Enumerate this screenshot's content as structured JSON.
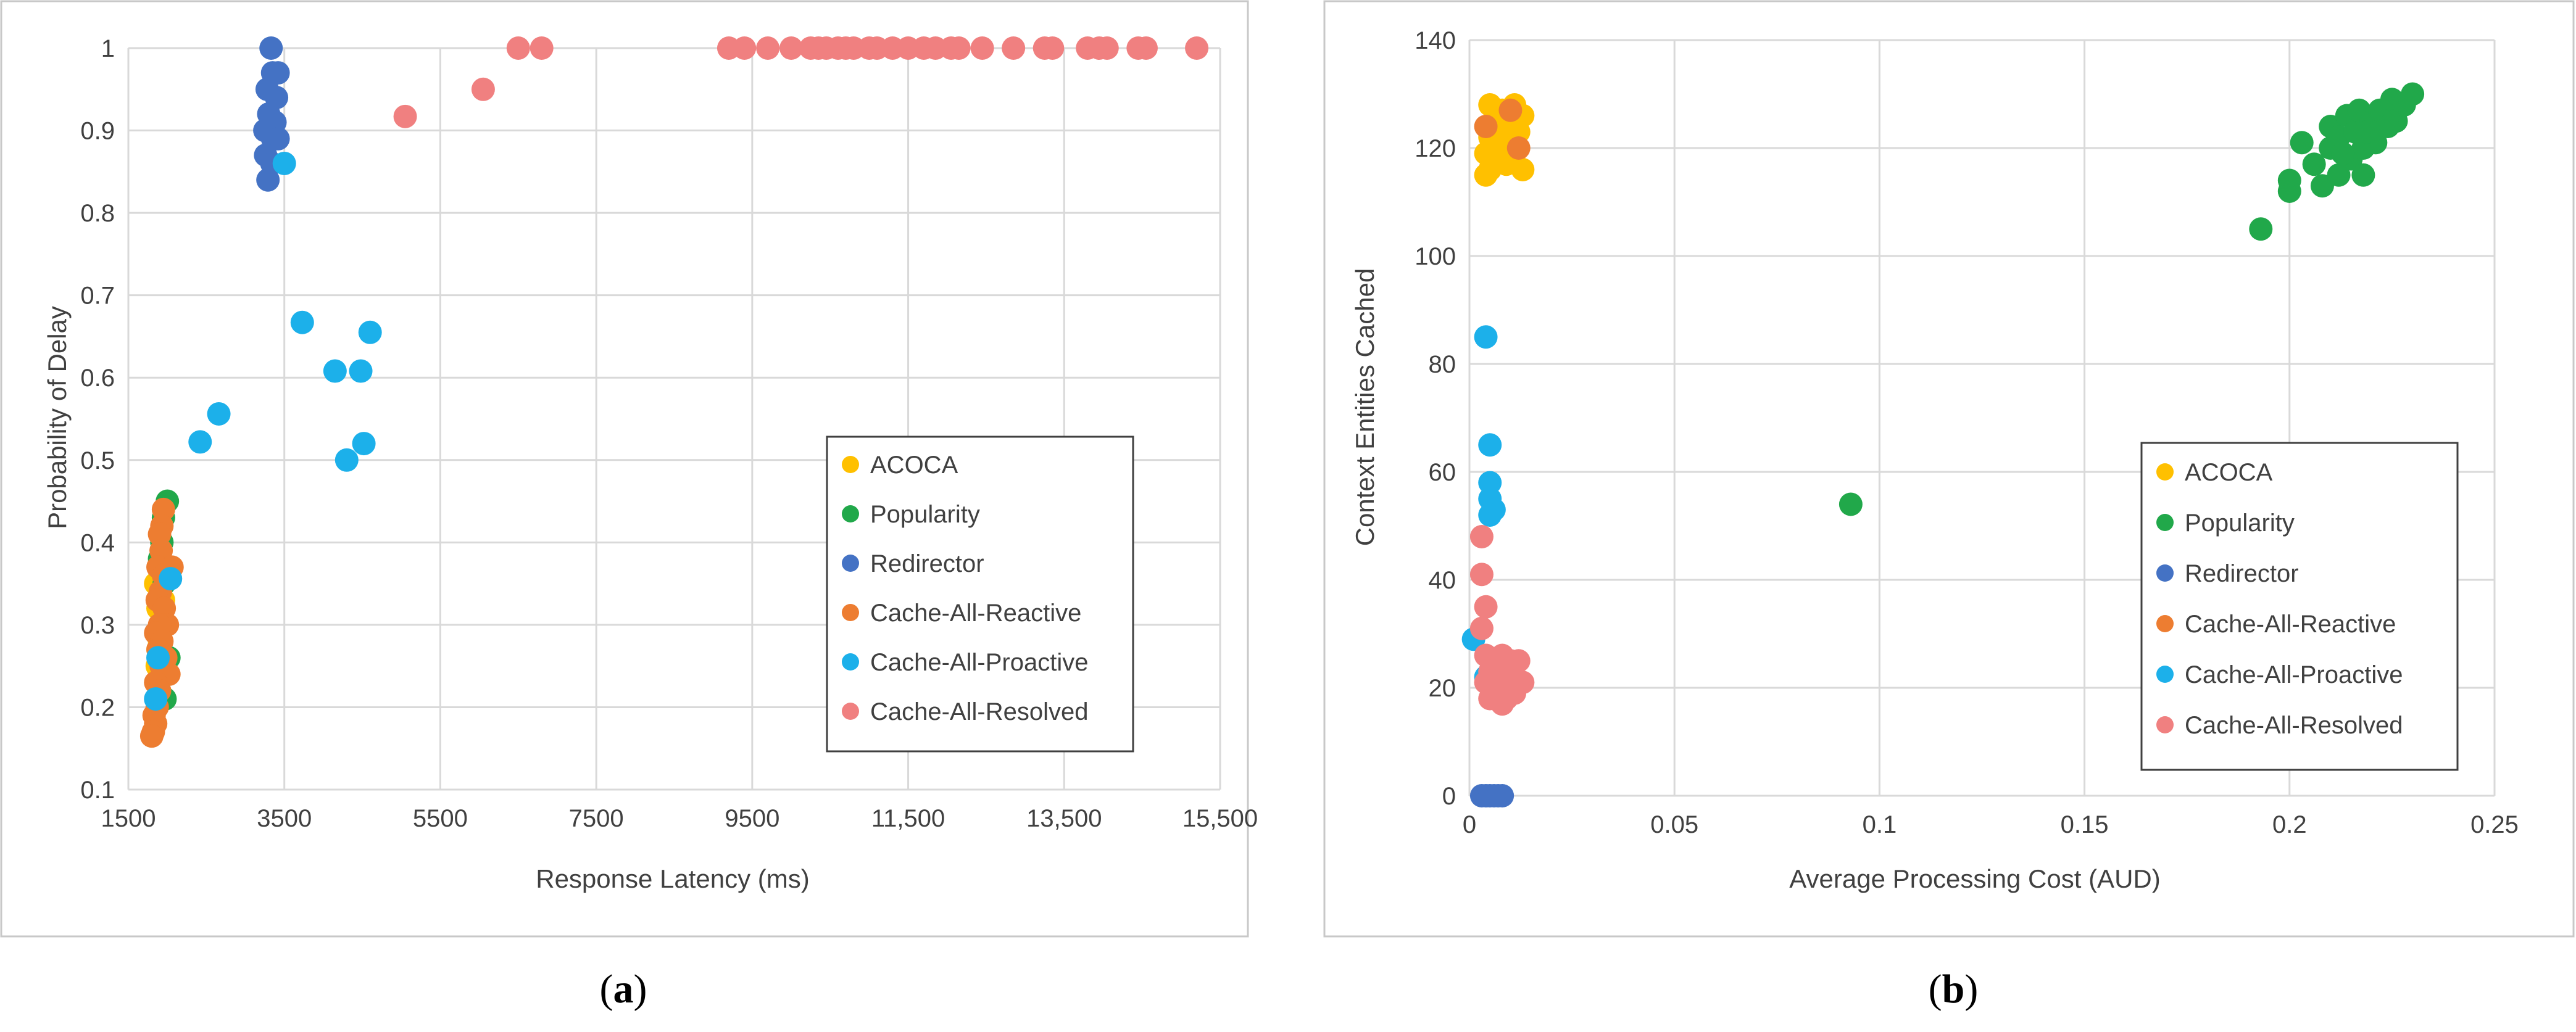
{
  "series_colors": {
    "ACOCA": "#FFC000",
    "Popularity": "#21A84A",
    "Redirector": "#4472C4",
    "Cache-All-Reactive": "#ED7D31",
    "Cache-All-Proactive": "#1CB0EA",
    "Cache-All-Resolved": "#F08080"
  },
  "chart_data": [
    {
      "type": "scatter",
      "caption": "(a)",
      "caption_letter": "a",
      "title": "",
      "xlabel": "Response Latency (ms)",
      "ylabel": "Probability of Delay",
      "xlim": [
        1500,
        15500
      ],
      "ylim": [
        0.1,
        1.0
      ],
      "x_ticks": [
        1500,
        3500,
        5500,
        7500,
        9500,
        11500,
        13500,
        15500
      ],
      "x_tick_labels": [
        "1500",
        "3500",
        "5500",
        "7500",
        "9500",
        "11,500",
        "13,500",
        "15,500"
      ],
      "y_ticks": [
        0.1,
        0.2,
        0.3,
        0.4,
        0.5,
        0.6,
        0.7,
        0.8,
        0.9,
        1.0
      ],
      "y_tick_labels": [
        "0.1",
        "0.2",
        "0.3",
        "0.4",
        "0.5",
        "0.6",
        "0.7",
        "0.8",
        "0.9",
        "1"
      ],
      "grid": true,
      "legend_position": "bottom-right",
      "series": [
        {
          "name": "ACOCA",
          "points": [
            [
              1850,
              0.35
            ],
            [
              1880,
              0.32
            ],
            [
              1900,
              0.28
            ],
            [
              1920,
              0.3
            ],
            [
              1870,
              0.25
            ],
            [
              1950,
              0.33
            ],
            [
              1900,
              0.22
            ],
            [
              1880,
              0.27
            ]
          ]
        },
        {
          "name": "Popularity",
          "points": [
            [
              2000,
              0.45
            ],
            [
              1950,
              0.43
            ],
            [
              1930,
              0.4
            ],
            [
              1900,
              0.38
            ],
            [
              2020,
              0.26
            ],
            [
              1970,
              0.21
            ],
            [
              1930,
              0.3
            ],
            [
              1960,
              0.35
            ]
          ]
        },
        {
          "name": "Redirector",
          "points": [
            [
              3330,
              1.0
            ],
            [
              3350,
              0.97
            ],
            [
              3420,
              0.97
            ],
            [
              3280,
              0.95
            ],
            [
              3400,
              0.94
            ],
            [
              3300,
              0.92
            ],
            [
              3380,
              0.91
            ],
            [
              3250,
              0.9
            ],
            [
              3350,
              0.89
            ],
            [
              3420,
              0.89
            ],
            [
              3260,
              0.87
            ],
            [
              3340,
              0.86
            ],
            [
              3290,
              0.84
            ]
          ]
        },
        {
          "name": "Cache-All-Reactive",
          "points": [
            [
              1950,
              0.44
            ],
            [
              1930,
              0.42
            ],
            [
              1900,
              0.41
            ],
            [
              1920,
              0.39
            ],
            [
              1880,
              0.37
            ],
            [
              2060,
              0.37
            ],
            [
              1950,
              0.36
            ],
            [
              1910,
              0.34
            ],
            [
              1870,
              0.33
            ],
            [
              1960,
              0.32
            ],
            [
              2000,
              0.3
            ],
            [
              1900,
              0.3
            ],
            [
              1850,
              0.29
            ],
            [
              1930,
              0.28
            ],
            [
              1880,
              0.27
            ],
            [
              1980,
              0.26
            ],
            [
              1920,
              0.25
            ],
            [
              2020,
              0.24
            ],
            [
              1850,
              0.23
            ],
            [
              1900,
              0.22
            ],
            [
              1870,
              0.2
            ],
            [
              1830,
              0.19
            ],
            [
              1850,
              0.18
            ],
            [
              1820,
              0.17
            ],
            [
              1800,
              0.165
            ]
          ]
        },
        {
          "name": "Cache-All-Proactive",
          "points": [
            [
              3500,
              0.86
            ],
            [
              3730,
              0.667
            ],
            [
              4150,
              0.608
            ],
            [
              4480,
              0.608
            ],
            [
              4600,
              0.655
            ],
            [
              2660,
              0.556
            ],
            [
              2420,
              0.522
            ],
            [
              4520,
              0.52
            ],
            [
              4300,
              0.5
            ],
            [
              2040,
              0.356
            ],
            [
              1880,
              0.26
            ],
            [
              1850,
              0.21
            ]
          ]
        },
        {
          "name": "Cache-All-Resolved",
          "points": [
            [
              6500,
              1.0
            ],
            [
              6800,
              1.0
            ],
            [
              9200,
              1.0
            ],
            [
              9400,
              1.0
            ],
            [
              9700,
              1.0
            ],
            [
              10000,
              1.0
            ],
            [
              10250,
              1.0
            ],
            [
              10350,
              1.0
            ],
            [
              10450,
              1.0
            ],
            [
              10600,
              1.0
            ],
            [
              10700,
              1.0
            ],
            [
              10800,
              1.0
            ],
            [
              11000,
              1.0
            ],
            [
              11100,
              1.0
            ],
            [
              11300,
              1.0
            ],
            [
              11500,
              1.0
            ],
            [
              11700,
              1.0
            ],
            [
              11850,
              1.0
            ],
            [
              12050,
              1.0
            ],
            [
              12150,
              1.0
            ],
            [
              12450,
              1.0
            ],
            [
              12850,
              1.0
            ],
            [
              13250,
              1.0
            ],
            [
              13350,
              1.0
            ],
            [
              13800,
              1.0
            ],
            [
              13950,
              1.0
            ],
            [
              14050,
              1.0
            ],
            [
              14450,
              1.0
            ],
            [
              14550,
              1.0
            ],
            [
              15200,
              1.0
            ],
            [
              6050,
              0.95
            ],
            [
              5050,
              0.917
            ]
          ]
        }
      ]
    },
    {
      "type": "scatter",
      "caption": "(b)",
      "caption_letter": "b",
      "title": "",
      "xlabel": "Average Processing Cost (AUD)",
      "ylabel": "Context Entities Cached",
      "xlim": [
        0,
        0.25
      ],
      "ylim": [
        0,
        140
      ],
      "x_ticks": [
        0,
        0.05,
        0.1,
        0.15,
        0.2,
        0.25
      ],
      "x_tick_labels": [
        "0",
        "0.05",
        "0.1",
        "0.15",
        "0.2",
        "0.25"
      ],
      "y_ticks": [
        0,
        20,
        40,
        60,
        80,
        100,
        120,
        140
      ],
      "y_tick_labels": [
        "0",
        "20",
        "40",
        "60",
        "80",
        "100",
        "120",
        "140"
      ],
      "grid": true,
      "legend_position": "middle-right",
      "series": [
        {
          "name": "ACOCA",
          "points": [
            [
              0.005,
              128
            ],
            [
              0.008,
              127
            ],
            [
              0.011,
              128
            ],
            [
              0.006,
              125
            ],
            [
              0.01,
              124
            ],
            [
              0.013,
              126
            ],
            [
              0.005,
              122
            ],
            [
              0.009,
              121
            ],
            [
              0.012,
              123
            ],
            [
              0.004,
              119
            ],
            [
              0.007,
              118
            ],
            [
              0.011,
              119
            ],
            [
              0.005,
              116
            ],
            [
              0.009,
              117
            ],
            [
              0.013,
              116
            ],
            [
              0.004,
              115
            ],
            [
              0.008,
              126
            ],
            [
              0.01,
              122
            ],
            [
              0.006,
              120
            ]
          ]
        },
        {
          "name": "Popularity",
          "points": [
            [
              0.193,
              105
            ],
            [
              0.093,
              54
            ],
            [
              0.2,
              112
            ],
            [
              0.2,
              114
            ],
            [
              0.203,
              121
            ],
            [
              0.206,
              117
            ],
            [
              0.208,
              113
            ],
            [
              0.21,
              120
            ],
            [
              0.21,
              124
            ],
            [
              0.212,
              115
            ],
            [
              0.212,
              122
            ],
            [
              0.214,
              126
            ],
            [
              0.215,
              118
            ],
            [
              0.216,
              123
            ],
            [
              0.217,
              127
            ],
            [
              0.218,
              120
            ],
            [
              0.218,
              115
            ],
            [
              0.22,
              125
            ],
            [
              0.221,
              121
            ],
            [
              0.222,
              127
            ],
            [
              0.224,
              124
            ],
            [
              0.225,
              129
            ],
            [
              0.226,
              125
            ],
            [
              0.228,
              128
            ],
            [
              0.23,
              130
            ],
            [
              0.213,
              119
            ],
            [
              0.219,
              123
            ]
          ]
        },
        {
          "name": "Redirector",
          "points": [
            [
              0.003,
              0
            ],
            [
              0.004,
              0
            ],
            [
              0.005,
              0
            ],
            [
              0.006,
              0
            ],
            [
              0.007,
              0
            ],
            [
              0.008,
              0
            ]
          ]
        },
        {
          "name": "Cache-All-Reactive",
          "points": [
            [
              0.004,
              124
            ],
            [
              0.01,
              127
            ],
            [
              0.012,
              120
            ]
          ]
        },
        {
          "name": "Cache-All-Proactive",
          "points": [
            [
              0.004,
              85
            ],
            [
              0.005,
              65
            ],
            [
              0.005,
              58
            ],
            [
              0.005,
              55
            ],
            [
              0.006,
              53
            ],
            [
              0.005,
              52
            ],
            [
              0.001,
              29
            ],
            [
              0.004,
              22
            ],
            [
              0.006,
              20
            ]
          ]
        },
        {
          "name": "Cache-All-Resolved",
          "points": [
            [
              0.003,
              48
            ],
            [
              0.003,
              41
            ],
            [
              0.004,
              35
            ],
            [
              0.003,
              31
            ],
            [
              0.004,
              26
            ],
            [
              0.006,
              25
            ],
            [
              0.008,
              26
            ],
            [
              0.01,
              25
            ],
            [
              0.012,
              25
            ],
            [
              0.005,
              23
            ],
            [
              0.007,
              22
            ],
            [
              0.009,
              23
            ],
            [
              0.011,
              22
            ],
            [
              0.013,
              21
            ],
            [
              0.004,
              21
            ],
            [
              0.006,
              20
            ],
            [
              0.008,
              19
            ],
            [
              0.01,
              20
            ],
            [
              0.012,
              21
            ],
            [
              0.007,
              18
            ],
            [
              0.009,
              18
            ],
            [
              0.008,
              17
            ],
            [
              0.005,
              18
            ],
            [
              0.011,
              19
            ]
          ]
        }
      ]
    }
  ]
}
